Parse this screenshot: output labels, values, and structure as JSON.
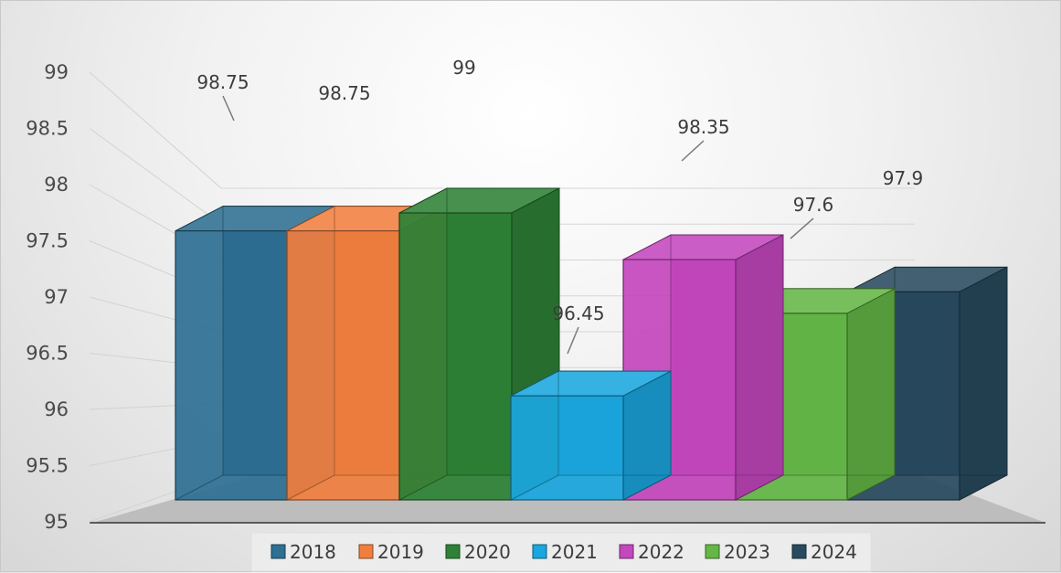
{
  "chart_data": {
    "type": "bar",
    "style": "3d-clustered",
    "categories": [
      ""
    ],
    "series": [
      {
        "name": "2018",
        "values": [
          98.75
        ],
        "color": "#2e6f92"
      },
      {
        "name": "2019",
        "values": [
          98.75
        ],
        "color": "#f07f3f"
      },
      {
        "name": "2020",
        "values": [
          99
        ],
        "color": "#2e8136"
      },
      {
        "name": "2021",
        "values": [
          96.45
        ],
        "color": "#1aa6de"
      },
      {
        "name": "2022",
        "values": [
          98.35
        ],
        "color": "#c447be"
      },
      {
        "name": "2023",
        "values": [
          97.6
        ],
        "color": "#64b646"
      },
      {
        "name": "2024",
        "values": [
          97.9
        ],
        "color": "#284a5e"
      }
    ],
    "ylim": [
      95,
      99
    ],
    "yticks": [
      "95",
      "95.5",
      "96",
      "96.5",
      "97",
      "97.5",
      "98",
      "98.5",
      "99"
    ],
    "data_labels": [
      "98.75",
      "98.75",
      "99",
      "96.45",
      "98.35",
      "97.6",
      "97.9"
    ],
    "grid": true,
    "legend": "bottom",
    "title": "",
    "xlabel": "",
    "ylabel": ""
  }
}
